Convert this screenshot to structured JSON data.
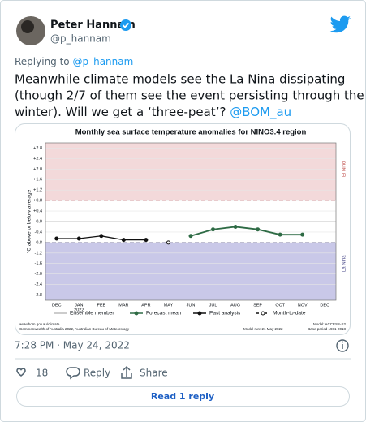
{
  "author": {
    "name": "Peter Hannam",
    "handle": "@p_hannam"
  },
  "reply_to": {
    "prefix": "Replying to",
    "handle": "@p_hannam"
  },
  "tweet": {
    "lines": [
      "Meanwhile climate models see the La Nina dissipating",
      "(though 2/7 of them see the event persisting through the",
      "winter). Will we get a ‘three-peat’?"
    ],
    "mention": "@BOM_au"
  },
  "chart_data": {
    "type": "line",
    "title": "Monthly sea surface temperature anomalies for NINO3.4 region",
    "y_label": "°C above or below average",
    "categories": [
      "DEC",
      "JAN",
      "FEB",
      "MAR",
      "APR",
      "MAY",
      "JUN",
      "JUL",
      "AUG",
      "SEP",
      "OCT",
      "NOV",
      "DEC"
    ],
    "year_label": "2022",
    "ylim": [
      -3.0,
      3.0
    ],
    "yticks": [
      {
        "value": 2.8,
        "label": "+2.8"
      },
      {
        "value": 2.4,
        "label": "+2.4"
      },
      {
        "value": 2.0,
        "label": "+2.0"
      },
      {
        "value": 1.6,
        "label": "+1.6"
      },
      {
        "value": 1.2,
        "label": "+1.2"
      },
      {
        "value": 0.8,
        "label": "+0.8"
      },
      {
        "value": 0.4,
        "label": "+0.4"
      },
      {
        "value": 0,
        "label": "0.0"
      },
      -0.4,
      -0.8,
      -1.2,
      -1.6,
      {
        "value": -2.0,
        "label": "-2.0"
      },
      -2.4,
      -2.8
    ],
    "el_nino_threshold": 0.8,
    "la_nina_threshold": -0.8,
    "el_nino_label": "El Niño",
    "la_nina_label": "La Niña",
    "series": [
      {
        "name": "Past analysis",
        "color": "#111111",
        "values": [
          -0.65,
          -0.65,
          -0.55,
          -0.7,
          -0.7,
          null,
          null,
          null,
          null,
          null,
          null,
          null,
          null
        ]
      },
      {
        "name": "Month-to-date",
        "color": "#111111",
        "values": [
          null,
          null,
          null,
          null,
          null,
          -0.8,
          null,
          null,
          null,
          null,
          null,
          null,
          null
        ]
      },
      {
        "name": "Forecast mean",
        "color": "#2e6b45",
        "values": [
          null,
          null,
          null,
          null,
          null,
          null,
          -0.55,
          -0.3,
          -0.2,
          -0.3,
          -0.5,
          -0.5,
          null
        ]
      }
    ],
    "ensemble_label": "Ensemble member",
    "footer": {
      "site": "www.bom.gov.au/climate",
      "copyright": "Commonwealth of Australia 2022, Australian Bureau of Meteorology",
      "model_run": "Model run: 21 May 2022",
      "model": "Model: ACCESS-S2",
      "base_period": "Base period 1981-2018"
    }
  },
  "timestamp": "7:28 PM · May 24, 2022",
  "actions": {
    "likes": 18,
    "reply": "Reply",
    "share": "Share"
  },
  "read_replies": "Read 1 reply"
}
